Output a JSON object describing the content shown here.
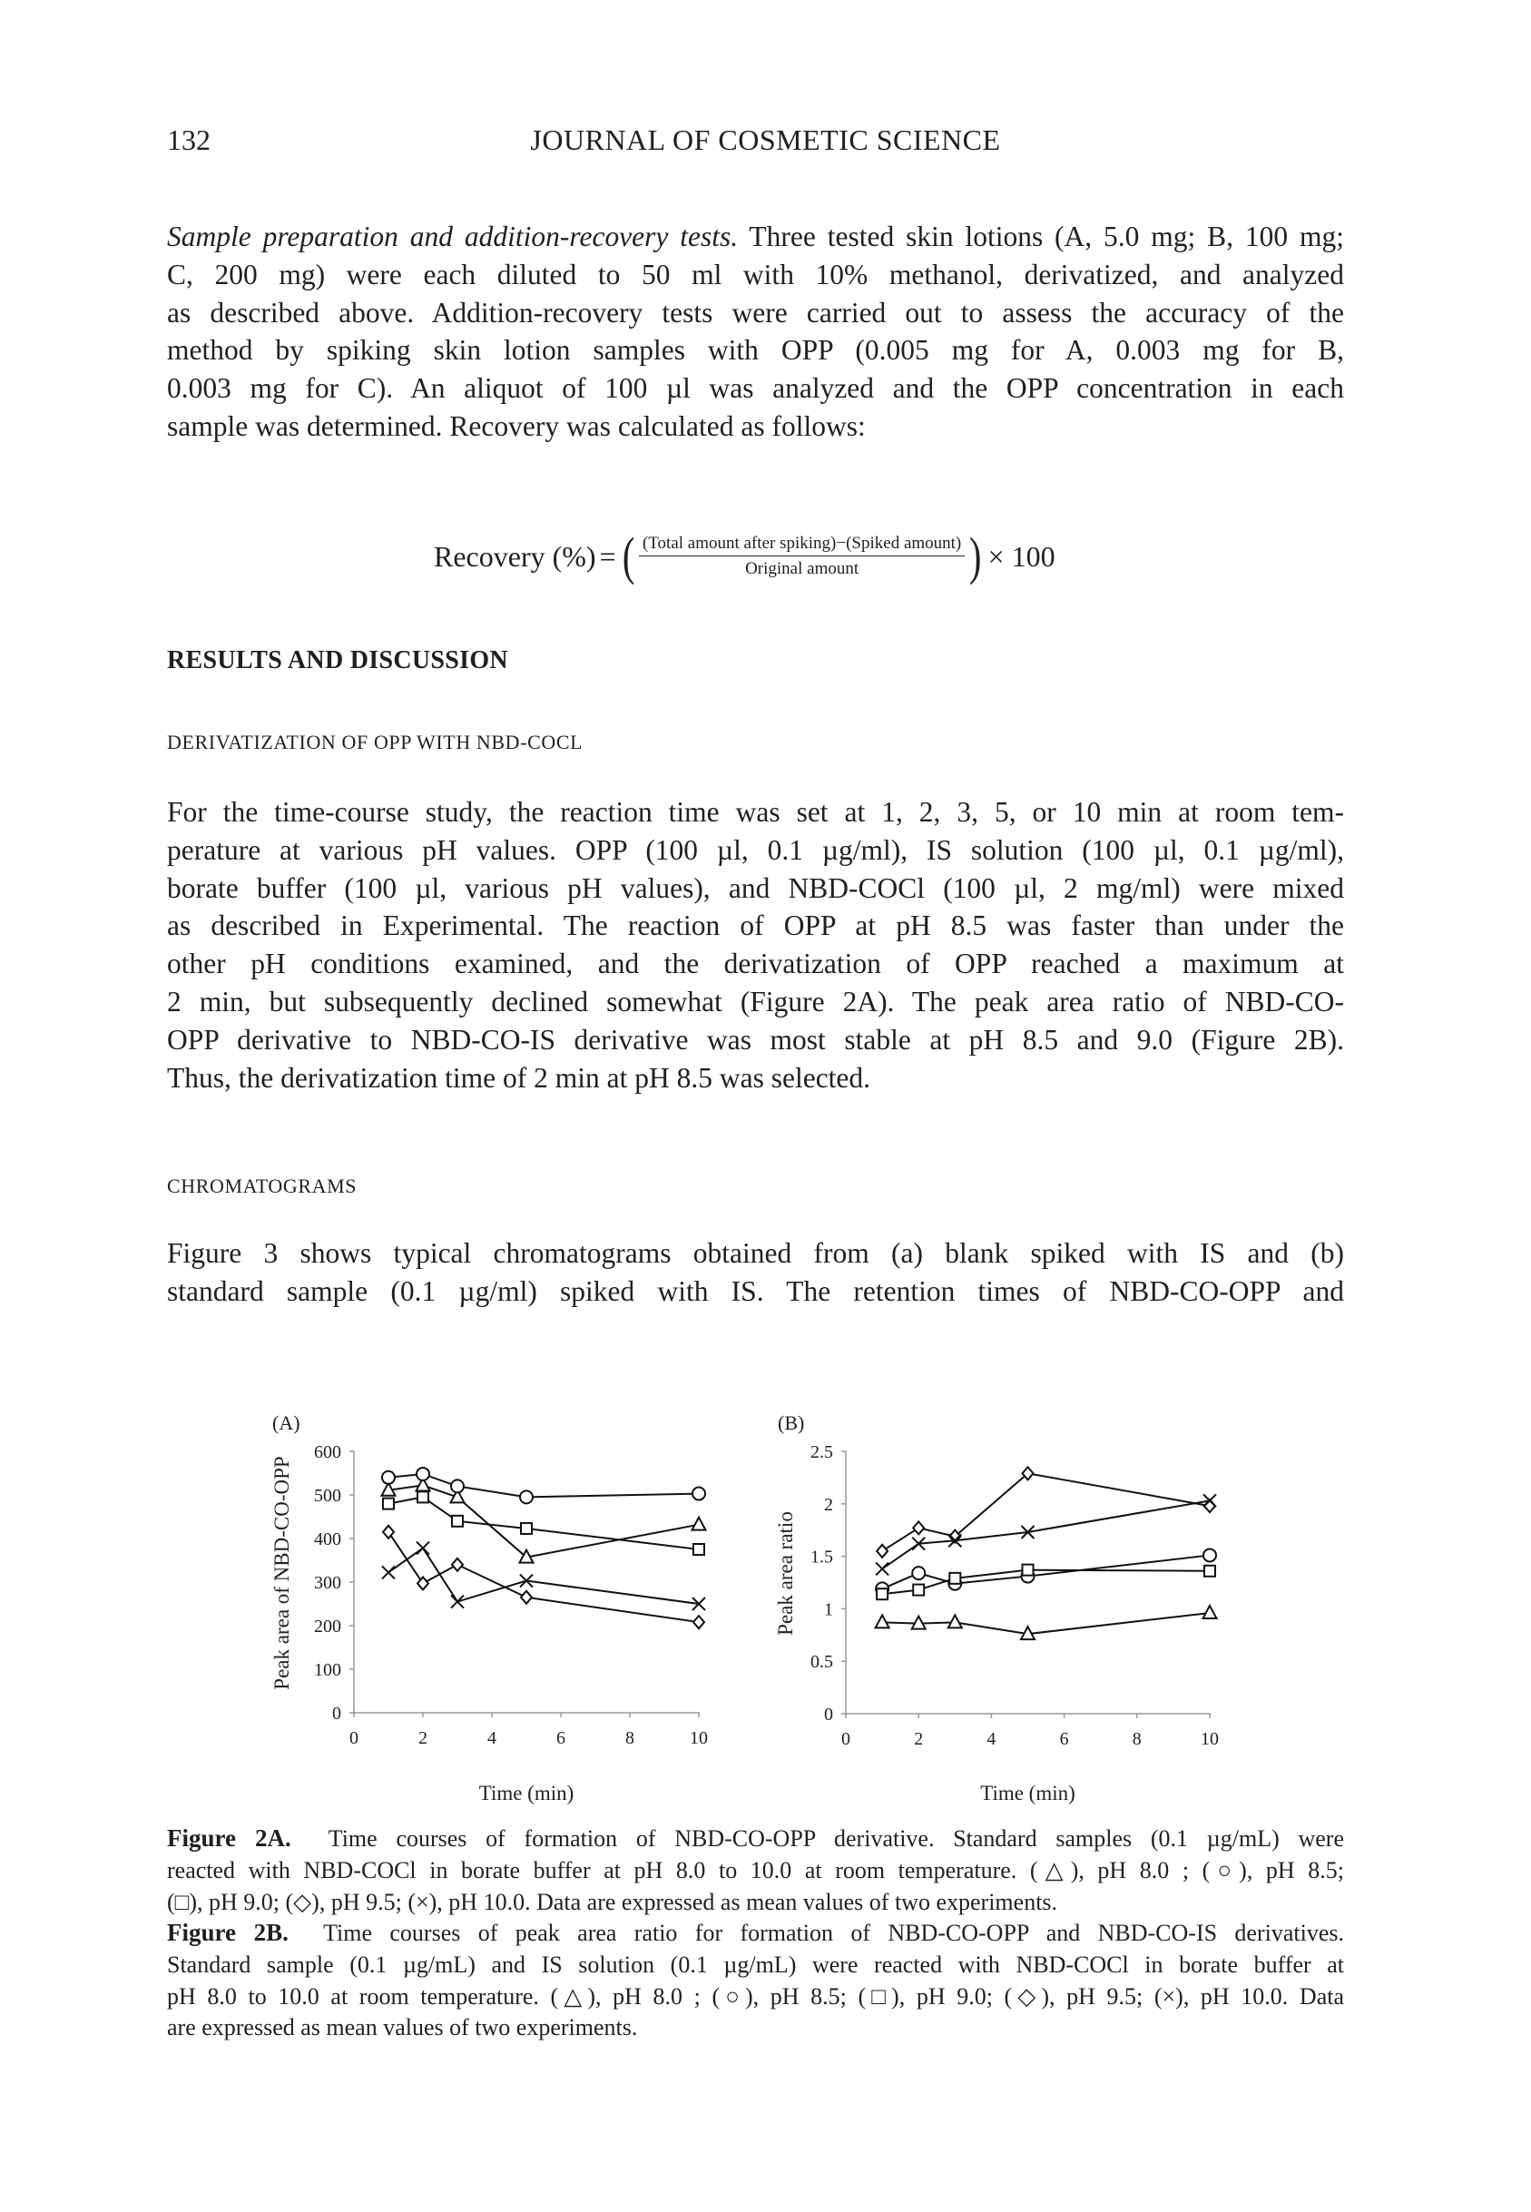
{
  "header": {
    "page_number": "132",
    "journal_title": "JOURNAL OF COSMETIC SCIENCE"
  },
  "para1": {
    "lead": "Sample preparation and addition-recovery tests.",
    "lines": [
      " Three tested skin lotions (A, 5.0 mg; B, 100 mg;",
      "C, 200 mg) were each diluted to 50 ml with 10% methanol, derivatized, and analyzed",
      "as described above. Addition-recovery tests were carried out to assess the accuracy of the",
      "method by spiking skin lotion samples with OPP (0.005 mg for A, 0.003 mg for B,",
      "0.003 mg for C). An aliquot of 100 µl was analyzed and the OPP concentration in each",
      "sample was determined. Recovery was calculated as follows:"
    ]
  },
  "formula": {
    "lhs": "Recovery",
    "percent": "(%)",
    "equals": "=",
    "numerator": "(Total amount after spiking)−(Spiked amount)",
    "denominator": "Original amount",
    "times": "× 100"
  },
  "section_heading": "RESULTS AND DISCUSSION",
  "subheading1": "DERIVATIZATION OF OPP WITH NBD-COCL",
  "para2": {
    "lines": [
      "For the time-course study, the reaction time was set at 1, 2, 3, 5, or 10 min at room tem-",
      "perature at various pH values. OPP (100 µl, 0.1 µg/ml), IS solution (100 µl, 0.1 µg/ml),",
      "borate buffer (100 µl, various pH values), and NBD-COCl (100 µl, 2 mg/ml) were mixed",
      "as described in Experimental. The reaction of OPP at pH 8.5 was faster than under the",
      "other pH conditions examined, and the derivatization of OPP reached a maximum at",
      "2 min, but subsequently declined somewhat (Figure 2A). The peak area ratio of NBD-CO-",
      "OPP derivative to NBD-CO-IS derivative was most stable at pH 8.5 and 9.0 (Figure 2B).",
      "Thus, the derivatization time of 2 min at pH 8.5 was selected."
    ]
  },
  "subheading2": "CHROMATOGRAMS",
  "para3": {
    "lines": [
      "Figure 3 shows typical chromatograms obtained from (a) blank spiked with IS and (b)",
      "standard sample (0.1 µg/ml) spiked with IS. The retention times of NBD-CO-OPP and"
    ]
  },
  "chart_data": [
    {
      "panel_label": "(A)",
      "type": "line",
      "xlabel": "Time (min)",
      "ylabel": "Peak area of NBD-CO-OPP",
      "xlim": [
        0,
        10
      ],
      "ylim": [
        0,
        600
      ],
      "xticks": [
        "0",
        "2",
        "4",
        "6",
        "8",
        "10"
      ],
      "yticks": [
        "0",
        "100",
        "200",
        "300",
        "400",
        "500",
        "600"
      ],
      "grid": false,
      "x": [
        1,
        2,
        3,
        5,
        10
      ],
      "series": [
        {
          "name": "pH 8.0",
          "marker": "triangle",
          "values": [
            511,
            522,
            495,
            357,
            432
          ]
        },
        {
          "name": "pH 8.5",
          "marker": "circle",
          "values": [
            540,
            548,
            520,
            495,
            503
          ]
        },
        {
          "name": "pH 9.0",
          "marker": "square",
          "values": [
            480,
            495,
            440,
            423,
            375
          ]
        },
        {
          "name": "pH 9.5",
          "marker": "diamond",
          "values": [
            415,
            297,
            340,
            265,
            208
          ]
        },
        {
          "name": "pH 10.0",
          "marker": "x",
          "values": [
            322,
            378,
            255,
            303,
            250
          ]
        }
      ]
    },
    {
      "panel_label": "(B)",
      "type": "line",
      "xlabel": "Time (min)",
      "ylabel": "Peak area ratio",
      "xlim": [
        0,
        10
      ],
      "ylim": [
        0,
        2.5
      ],
      "xticks": [
        "0",
        "2",
        "4",
        "6",
        "8",
        "10"
      ],
      "yticks": [
        "0",
        "0.5",
        "1",
        "1.5",
        "2",
        "2.5"
      ],
      "grid": false,
      "x": [
        1,
        2,
        3,
        5,
        10
      ],
      "series": [
        {
          "name": "pH 8.0",
          "marker": "triangle",
          "values": [
            0.87,
            0.86,
            0.87,
            0.76,
            0.96
          ]
        },
        {
          "name": "pH 8.5",
          "marker": "circle",
          "values": [
            1.19,
            1.34,
            1.24,
            1.31,
            1.51
          ]
        },
        {
          "name": "pH 9.0",
          "marker": "square",
          "values": [
            1.14,
            1.18,
            1.29,
            1.37,
            1.36
          ]
        },
        {
          "name": "pH 9.5",
          "marker": "diamond",
          "values": [
            1.55,
            1.77,
            1.69,
            2.29,
            1.98
          ]
        },
        {
          "name": "pH 10.0",
          "marker": "x",
          "values": [
            1.38,
            1.62,
            1.65,
            1.73,
            2.03
          ]
        }
      ]
    }
  ],
  "caption_a": {
    "lead": "Figure 2A.",
    "lines": [
      "  Time courses of formation of NBD-CO-OPP derivative. Standard samples (0.1 µg/mL) were",
      "reacted with NBD-COCl in borate buffer at pH 8.0 to 10.0 at room temperature. (△), pH 8.0 ; (○), pH 8.5;",
      "(□), pH 9.0; (◇), pH 9.5; (×), pH 10.0. Data are expressed as mean values of two experiments."
    ]
  },
  "caption_b": {
    "lead": "Figure 2B.",
    "lines": [
      "  Time courses of peak area ratio for formation of NBD-CO-OPP and NBD-CO-IS derivatives.",
      "Standard sample (0.1 µg/mL) and IS solution (0.1 µg/mL) were reacted with NBD-COCl in borate buffer at",
      "pH 8.0 to 10.0 at room temperature. (△), pH 8.0 ; (○), pH 8.5; (□), pH 9.0; (◇), pH 9.5; (×), pH 10.0. Data",
      "are expressed as mean values of two experiments."
    ]
  }
}
